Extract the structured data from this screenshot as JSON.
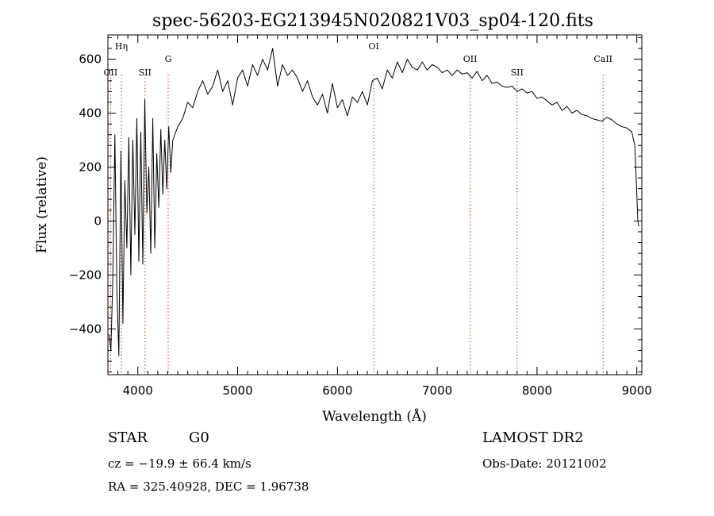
{
  "chart_data": {
    "type": "line",
    "title": "spec-56203-EG213945N020821V03_sp04-120.fits",
    "xlabel": "Wavelength (Å)",
    "ylabel": "Flux (relative)",
    "xlim": [
      3700,
      9050
    ],
    "ylim": [
      -570,
      690
    ],
    "x_ticks": [
      4000,
      5000,
      6000,
      7000,
      8000,
      9000
    ],
    "y_ticks": [
      -400,
      -200,
      0,
      200,
      400,
      600
    ],
    "grid": false,
    "legend": "none",
    "spectral_lines": [
      {
        "label": "OII",
        "x": 3727
      },
      {
        "label": "Hη",
        "x": 3835
      },
      {
        "label": "SII",
        "x": 4072
      },
      {
        "label": "G",
        "x": 4304
      },
      {
        "label": "OI",
        "x": 6364
      },
      {
        "label": "OII",
        "x": 7330
      },
      {
        "label": "SII",
        "x": 7800
      },
      {
        "label": "CaII",
        "x": 8662
      }
    ],
    "series": [
      {
        "x": [
          3710,
          3730,
          3750,
          3770,
          3790,
          3810,
          3830,
          3850,
          3870,
          3890,
          3910,
          3930,
          3950,
          3970,
          3990,
          4010,
          4030,
          4050,
          4070,
          4090,
          4110,
          4130,
          4150,
          4170,
          4190,
          4210,
          4230,
          4250,
          4270,
          4290,
          4310,
          4330,
          4350,
          4400,
          4450,
          4500,
          4550,
          4600,
          4650,
          4700,
          4750,
          4800,
          4850,
          4900,
          4950,
          5000,
          5050,
          5100,
          5150,
          5200,
          5250,
          5300,
          5350,
          5400,
          5450,
          5500,
          5550,
          5600,
          5650,
          5700,
          5750,
          5800,
          5850,
          5900,
          5950,
          6000,
          6050,
          6100,
          6150,
          6200,
          6250,
          6300,
          6350,
          6400,
          6450,
          6500,
          6550,
          6600,
          6650,
          6700,
          6750,
          6800,
          6850,
          6900,
          6950,
          7000,
          7050,
          7100,
          7150,
          7200,
          7250,
          7300,
          7350,
          7400,
          7450,
          7500,
          7550,
          7600,
          7650,
          7700,
          7750,
          7800,
          7850,
          7900,
          7950,
          8000,
          8050,
          8100,
          8150,
          8200,
          8250,
          8300,
          8350,
          8400,
          8450,
          8500,
          8550,
          8600,
          8650,
          8700,
          8750,
          8800,
          8850,
          8900,
          8950,
          8980,
          9000,
          9010,
          9020
        ],
        "values": [
          -420,
          -480,
          -200,
          320,
          -250,
          -500,
          260,
          -380,
          150,
          -100,
          310,
          -200,
          300,
          -50,
          380,
          -150,
          330,
          -160,
          450,
          30,
          200,
          -120,
          380,
          -100,
          250,
          50,
          340,
          100,
          300,
          120,
          350,
          180,
          300,
          350,
          380,
          440,
          420,
          480,
          520,
          470,
          500,
          560,
          480,
          520,
          430,
          530,
          560,
          500,
          580,
          540,
          600,
          560,
          640,
          500,
          580,
          540,
          560,
          530,
          480,
          520,
          460,
          430,
          470,
          400,
          510,
          420,
          450,
          390,
          460,
          440,
          480,
          430,
          520,
          530,
          490,
          560,
          530,
          590,
          550,
          600,
          570,
          560,
          590,
          560,
          580,
          570,
          550,
          560,
          540,
          560,
          545,
          550,
          530,
          555,
          520,
          540,
          510,
          515,
          500,
          495,
          500,
          480,
          490,
          475,
          480,
          455,
          460,
          445,
          430,
          440,
          410,
          425,
          400,
          410,
          395,
          390,
          380,
          375,
          370,
          385,
          375,
          360,
          350,
          345,
          330,
          280,
          100,
          0,
          -20
        ]
      }
    ]
  },
  "info": {
    "class_label": "STAR",
    "subclass_label": "G0",
    "cz_text": "cz = −19.9 ± 66.4 km/s",
    "coords_text": "RA = 325.40928, DEC =   1.96738",
    "survey_label": "LAMOST DR2",
    "obs_date_text": "Obs-Date: 20121002"
  }
}
